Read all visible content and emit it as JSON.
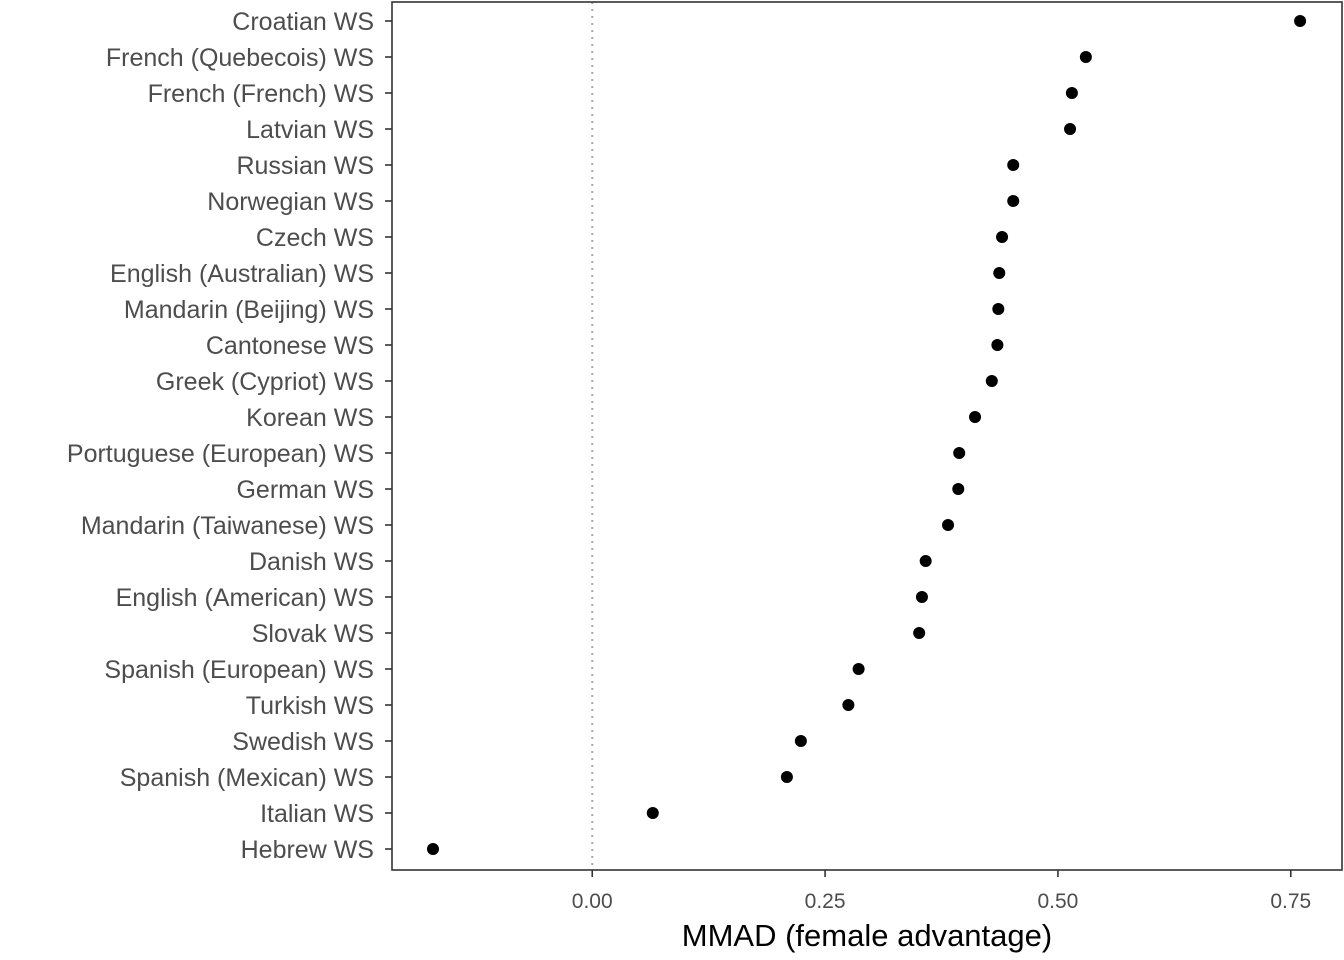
{
  "chart_data": {
    "type": "scatter",
    "xlabel": "MMAD (female advantage)",
    "ylabel": "",
    "xlim": [
      -0.215,
      0.805
    ],
    "x_ticks": [
      {
        "value": 0.0,
        "label": "0.00"
      },
      {
        "value": 0.25,
        "label": "0.25"
      },
      {
        "value": 0.5,
        "label": "0.50"
      },
      {
        "value": 0.75,
        "label": "0.75"
      }
    ],
    "reference_line": {
      "value": 0.0,
      "style": "dotted"
    },
    "grid": false,
    "categories": [
      "Croatian WS",
      "French (Quebecois) WS",
      "French (French) WS",
      "Latvian WS",
      "Russian WS",
      "Norwegian WS",
      "Czech WS",
      "English (Australian) WS",
      "Mandarin (Beijing) WS",
      "Cantonese WS",
      "Greek (Cypriot) WS",
      "Korean WS",
      "Portuguese (European) WS",
      "German WS",
      "Mandarin (Taiwanese) WS",
      "Danish WS",
      "English (American) WS",
      "Slovak WS",
      "Spanish (European) WS",
      "Turkish WS",
      "Swedish WS",
      "Spanish (Mexican) WS",
      "Italian WS",
      "Hebrew WS"
    ],
    "values": [
      0.76,
      0.53,
      0.515,
      0.513,
      0.452,
      0.452,
      0.44,
      0.437,
      0.436,
      0.435,
      0.429,
      0.411,
      0.394,
      0.393,
      0.382,
      0.358,
      0.354,
      0.351,
      0.286,
      0.275,
      0.224,
      0.209,
      0.065,
      -0.171
    ],
    "colors": {
      "point": "#000000",
      "reference_line": "#a6a6a6",
      "panel_border": "#333333",
      "tick": "#333333"
    }
  }
}
